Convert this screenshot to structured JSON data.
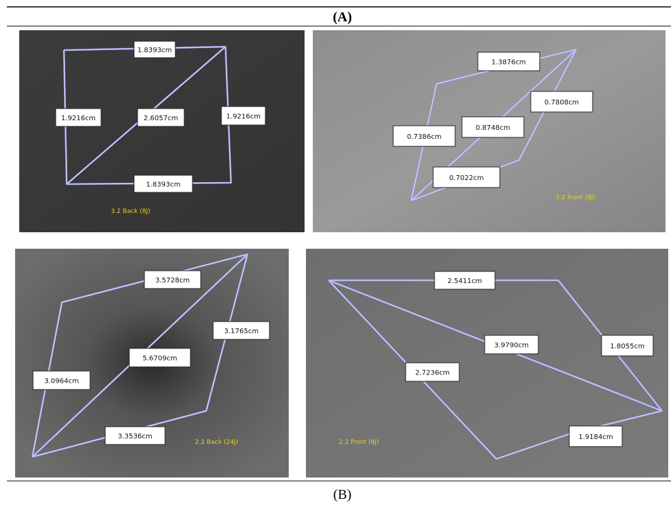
{
  "header": {
    "title": "(A)"
  },
  "footer": {
    "title": "(B)"
  },
  "panels": [
    {
      "caption": "3.2 Back (8J)",
      "labels": [
        "1.8393cm",
        "1.9216cm",
        "2.6057cm",
        "1.9216cm",
        "1.8393cm"
      ]
    },
    {
      "caption": "3.2 Front (8J)",
      "labels": [
        "1.3876cm",
        "0.7808cm",
        "0.8748cm",
        "0.7386cm",
        "0.7022cm"
      ]
    },
    {
      "caption": "2.2 Back (24J)",
      "labels": [
        "3.5728cm",
        "3.1765cm",
        "5.6709cm",
        "3.0964cm",
        "3.3536cm"
      ]
    },
    {
      "caption": "2.2 Front (8J)",
      "labels": [
        "2.5411cm",
        "3.9790cm",
        "1.8055cm",
        "2.7236cm",
        "1.9184cm"
      ]
    }
  ]
}
